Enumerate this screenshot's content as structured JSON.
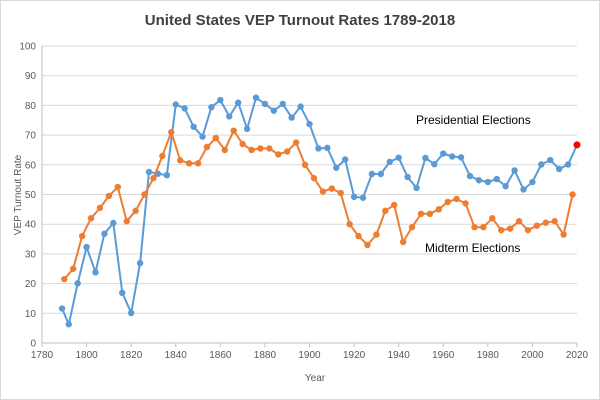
{
  "chart_data": {
    "type": "line",
    "title": "United States VEP Turnout Rates 1789-2018",
    "xlabel": "Year",
    "ylabel": "VEP Turnout Rate",
    "xlim": [
      1780,
      2020
    ],
    "ylim": [
      0,
      100
    ],
    "xticks": [
      1780,
      1800,
      1820,
      1840,
      1860,
      1880,
      1900,
      1920,
      1940,
      1960,
      1980,
      2000,
      2020
    ],
    "yticks": [
      0,
      10,
      20,
      30,
      40,
      50,
      60,
      70,
      80,
      90,
      100
    ],
    "grid": "horizontal",
    "series": [
      {
        "name": "Presidential Elections",
        "color": "#5b9bd5",
        "x": [
          1789,
          1792,
          1796,
          1800,
          1804,
          1808,
          1812,
          1816,
          1820,
          1824,
          1828,
          1832,
          1836,
          1840,
          1844,
          1848,
          1852,
          1856,
          1860,
          1864,
          1868,
          1872,
          1876,
          1880,
          1884,
          1888,
          1892,
          1896,
          1900,
          1904,
          1908,
          1912,
          1916,
          1920,
          1924,
          1928,
          1932,
          1936,
          1940,
          1944,
          1948,
          1952,
          1956,
          1960,
          1964,
          1968,
          1972,
          1976,
          1980,
          1984,
          1988,
          1992,
          1996,
          2000,
          2004,
          2008,
          2012,
          2016
        ],
        "y": [
          11.6,
          6.3,
          20.1,
          32.3,
          23.8,
          36.8,
          40.4,
          16.9,
          10.1,
          26.9,
          57.6,
          57.0,
          56.5,
          80.3,
          79.0,
          72.8,
          69.5,
          79.4,
          81.8,
          76.3,
          80.9,
          72.1,
          82.6,
          80.5,
          78.2,
          80.5,
          75.9,
          79.6,
          73.7,
          65.5,
          65.7,
          59.0,
          61.8,
          49.2,
          48.9,
          56.9,
          56.9,
          61.0,
          62.4,
          55.9,
          52.2,
          62.3,
          60.2,
          63.8,
          62.8,
          62.5,
          56.2,
          54.8,
          54.2,
          55.2,
          52.8,
          58.1,
          51.7,
          54.2,
          60.1,
          61.6,
          58.6,
          60.1
        ]
      },
      {
        "name": "Midterm Elections",
        "color": "#ed7d31",
        "x": [
          1790,
          1794,
          1798,
          1802,
          1806,
          1810,
          1814,
          1818,
          1822,
          1826,
          1830,
          1834,
          1838,
          1842,
          1846,
          1850,
          1854,
          1858,
          1862,
          1866,
          1870,
          1874,
          1878,
          1882,
          1886,
          1890,
          1894,
          1898,
          1902,
          1906,
          1910,
          1914,
          1918,
          1922,
          1926,
          1930,
          1934,
          1938,
          1942,
          1946,
          1950,
          1954,
          1958,
          1962,
          1966,
          1970,
          1974,
          1978,
          1982,
          1986,
          1990,
          1994,
          1998,
          2002,
          2006,
          2010,
          2014,
          2018
        ],
        "y": [
          21.5,
          25,
          36,
          42,
          45.5,
          49.5,
          52.5,
          41,
          44.5,
          50,
          55.5,
          63,
          71,
          61.5,
          60.5,
          60.5,
          66,
          69,
          65,
          71.5,
          67,
          65,
          65.5,
          65.5,
          63.5,
          64.5,
          67.5,
          60,
          55.5,
          51,
          52,
          50.5,
          40,
          36,
          33,
          36.5,
          44.5,
          46.5,
          34,
          39,
          43.5,
          43.5,
          45,
          47.5,
          48.5,
          47,
          39,
          39,
          42,
          38,
          38.5,
          41,
          38,
          39.5,
          40.5,
          41,
          36.5,
          50
        ]
      }
    ],
    "highlight_point": {
      "x": 2020,
      "y": 66.7,
      "color": "#ff0000"
    },
    "annotations": [
      "Presidential Elections",
      "Midterm Elections"
    ]
  }
}
